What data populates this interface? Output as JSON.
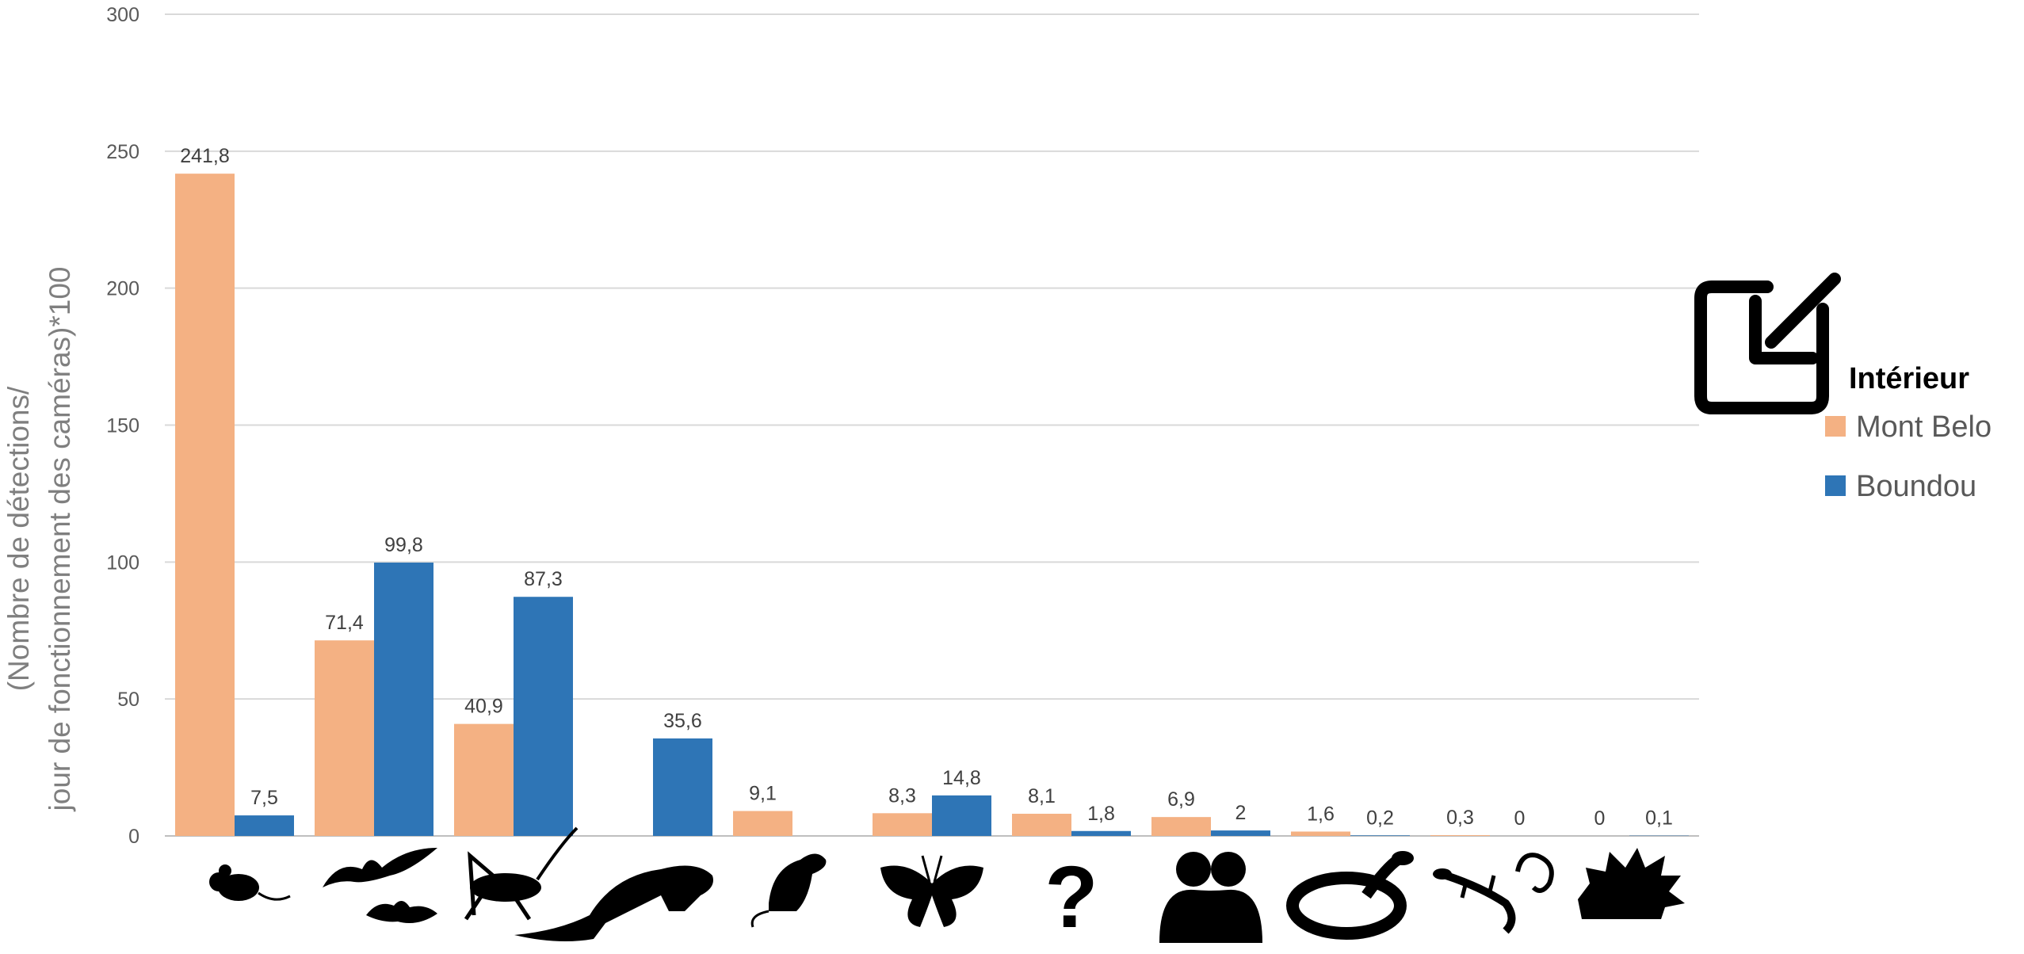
{
  "chart_data": {
    "type": "bar",
    "categories": [
      "mouse-icon",
      "bat-icon",
      "cricket-icon",
      "weasel-icon",
      "rat-icon",
      "butterfly-icon",
      "question-mark-icon",
      "people-icon",
      "snake-icon",
      "gecko-icon",
      "hedgehog-icon"
    ],
    "category_labels": [
      "",
      "",
      "",
      "",
      "",
      "",
      "?",
      "",
      "",
      "",
      ""
    ],
    "series": [
      {
        "name": "Mont Belo",
        "color": "#f4b183",
        "values": [
          241.8,
          71.4,
          40.9,
          null,
          9.1,
          8.3,
          8.1,
          6.9,
          1.6,
          0.3,
          0
        ],
        "labels": [
          "241,8",
          "71,4",
          "40,9",
          "",
          "9,1",
          "8,3",
          "8,1",
          "6,9",
          "1,6",
          "0,3",
          "0"
        ]
      },
      {
        "name": "Boundou",
        "color": "#2e75b6",
        "values": [
          7.5,
          99.8,
          87.3,
          35.6,
          null,
          14.8,
          1.8,
          2,
          0.2,
          0,
          0.1
        ],
        "labels": [
          "7,5",
          "99,8",
          "87,3",
          "35,6",
          "",
          "14,8",
          "1,8",
          "2",
          "0,2",
          "0",
          "0,1"
        ]
      }
    ],
    "ylabel_lines": [
      "(Nombre de détections/",
      "jour de fonctionnement des caméras)*100"
    ],
    "ylim": [
      0,
      300
    ],
    "yticks": [
      0,
      50,
      100,
      150,
      200,
      250,
      300
    ],
    "grid": true,
    "legend": {
      "title": "Intérieur",
      "position": "right"
    },
    "legend_icon": "collapse-arrow-icon",
    "gridline_color": "#d9d9d9",
    "axis_color": "#bfbfbf"
  }
}
